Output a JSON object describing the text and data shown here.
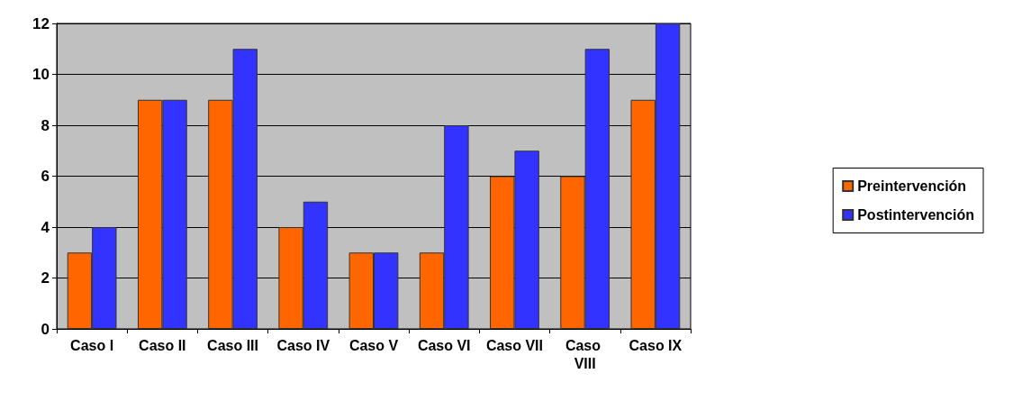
{
  "chart_data": {
    "type": "bar",
    "categories": [
      "Caso I",
      "Caso II",
      "Caso III",
      "Caso IV",
      "Caso V",
      "Caso VI",
      "Caso VII",
      "Caso VIII",
      "Caso IX"
    ],
    "series": [
      {
        "name": "Preintervención",
        "color": "#ff6600",
        "values": [
          3,
          9,
          9,
          4,
          3,
          3,
          6,
          6,
          9
        ]
      },
      {
        "name": "Postintervención",
        "color": "#3333ff",
        "values": [
          4,
          9,
          11,
          5,
          3,
          8,
          7,
          11,
          12
        ]
      }
    ],
    "ylim": [
      0,
      12
    ],
    "yticks": [
      0,
      2,
      4,
      6,
      8,
      10,
      12
    ],
    "grid": "y",
    "legend": "right"
  }
}
